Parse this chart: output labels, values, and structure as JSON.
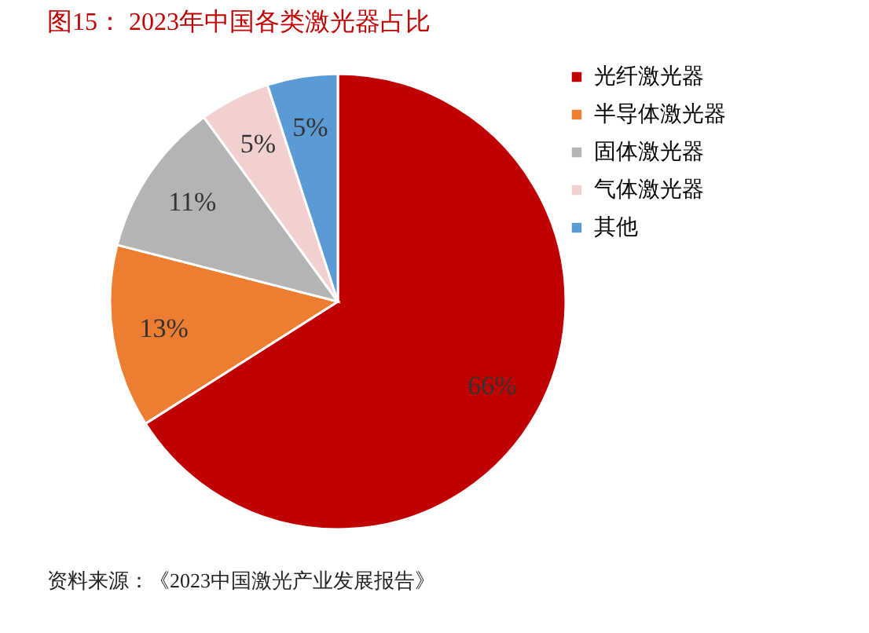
{
  "chart_data": {
    "type": "pie",
    "title": "图15：   2023年中国各类激光器占比",
    "categories": [
      "光纤激光器",
      "半导体激光器",
      "固体激光器",
      "气体激光器",
      "其他"
    ],
    "values": [
      66,
      13,
      11,
      5,
      5
    ],
    "colors": [
      "#c00000",
      "#ed7d31",
      "#b4b4b4",
      "#f2d0d0",
      "#5b9bd5"
    ],
    "value_labels": [
      "66%",
      "13%",
      "11%",
      "5%",
      "5%"
    ],
    "legend": "right",
    "annotations": [
      "资料来源：《2023中国激光产业发展报告》"
    ]
  }
}
